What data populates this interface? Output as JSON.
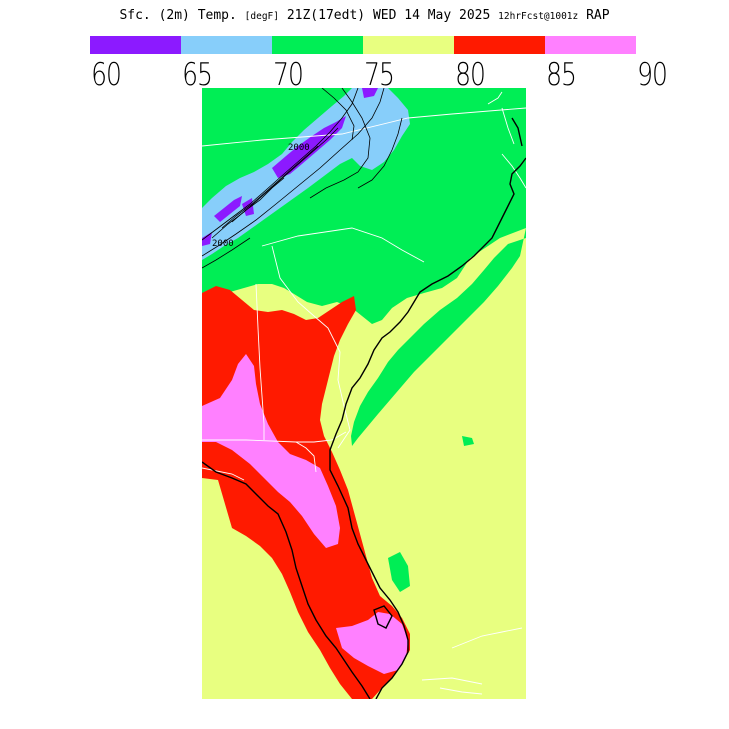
{
  "header": {
    "main_title": "Sfc. (2m) Temp.",
    "units": "[degF]",
    "valid_time": "21Z(17edt)",
    "valid_date": "WED 14 May 2025",
    "forecast_info": "12hrFcst@1001z",
    "model": "RAP"
  },
  "colorbar": {
    "bins": [
      {
        "range": "60-65",
        "color": "#8c1aff"
      },
      {
        "range": "65-70",
        "color": "#87cefa"
      },
      {
        "range": "70-75",
        "color": "#00ee55"
      },
      {
        "range": "75-80",
        "color": "#e8ff80"
      },
      {
        "range": "80-85",
        "color": "#ff1a00"
      },
      {
        "range": "85-90",
        "color": "#ff80ff"
      }
    ],
    "ticks": [
      "60",
      "65",
      "70",
      "75",
      "80",
      "85",
      "90"
    ]
  },
  "map": {
    "contour_labels": [
      "2000",
      "2000"
    ]
  }
}
